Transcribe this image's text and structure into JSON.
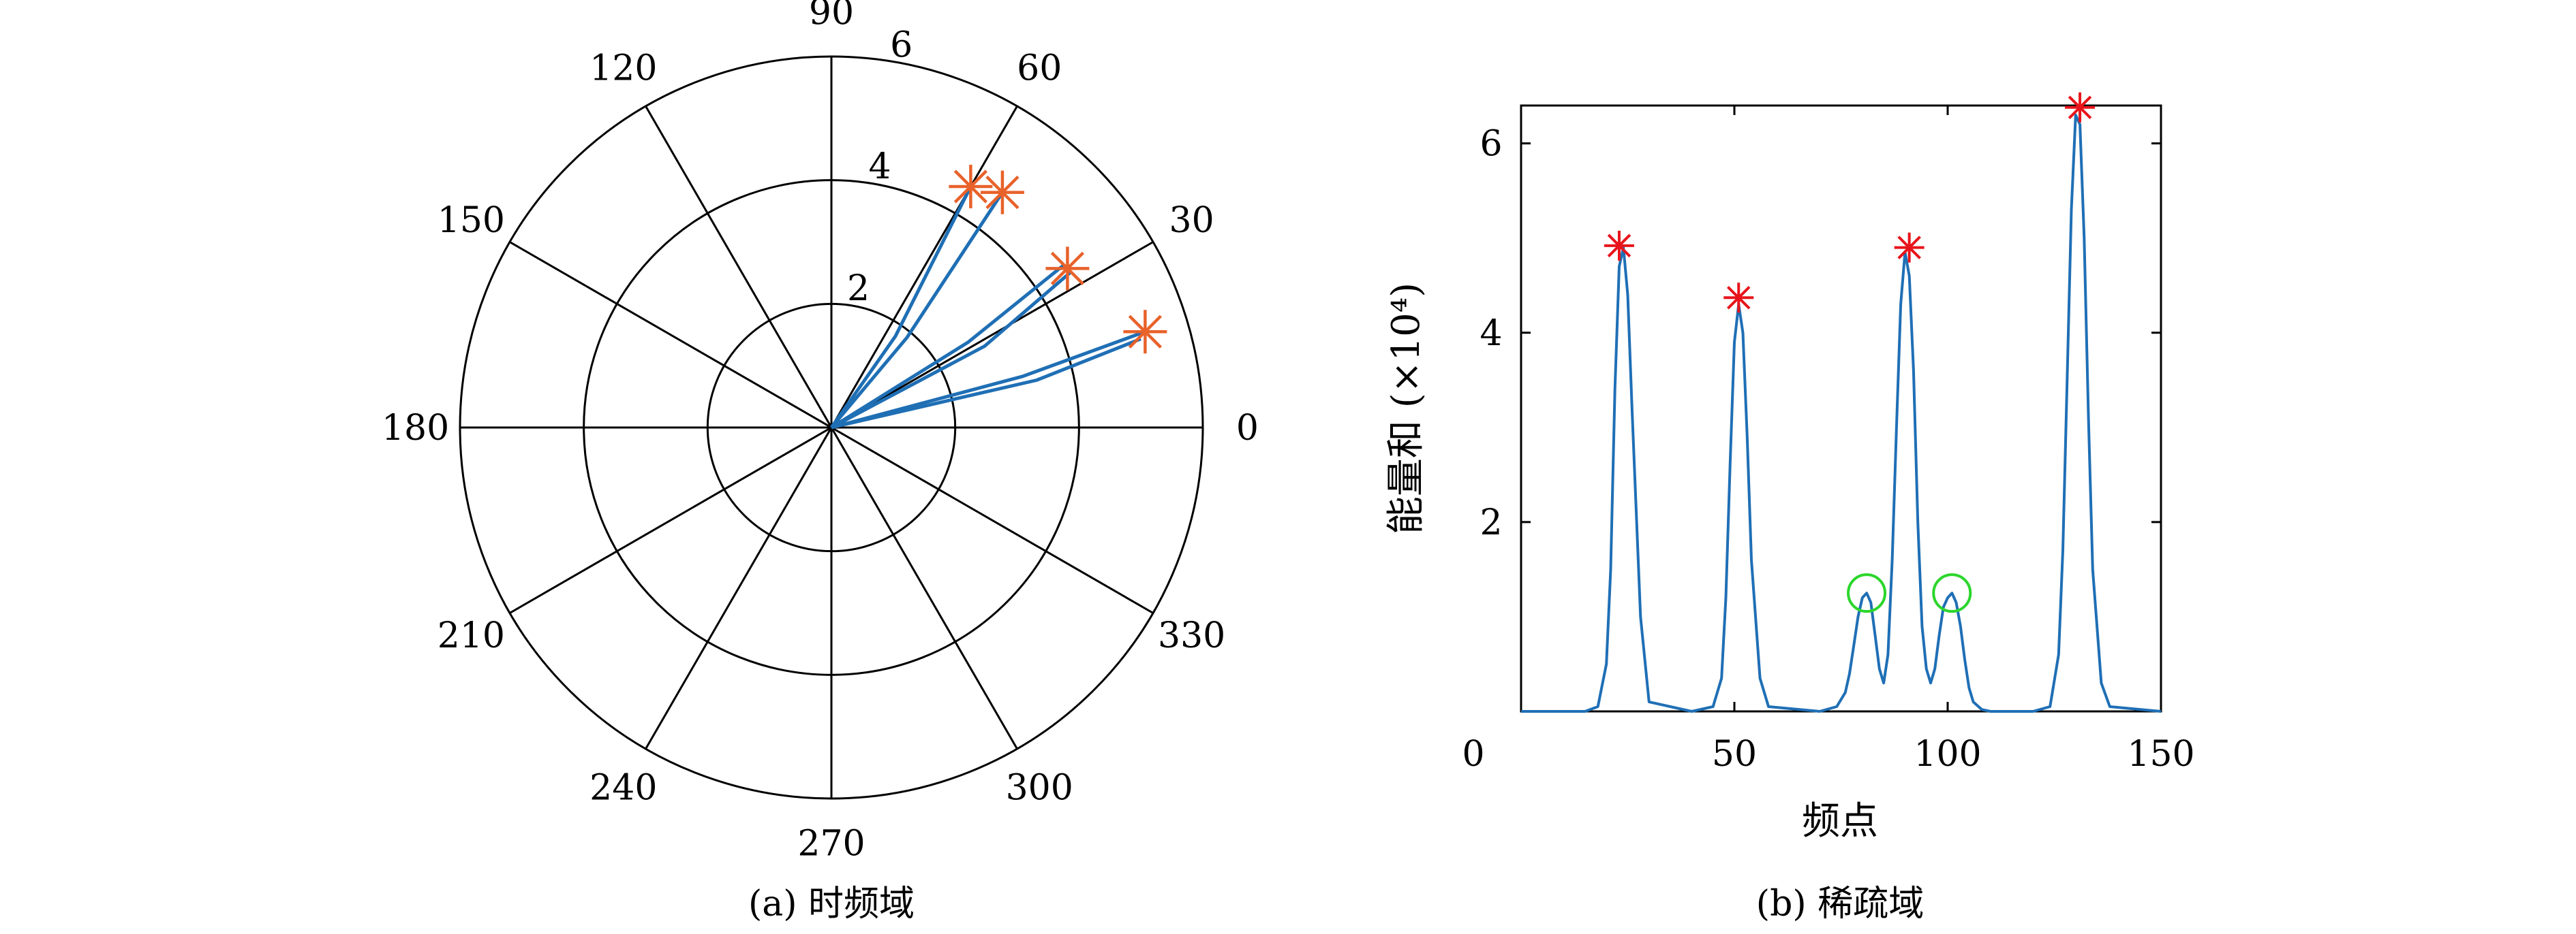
{
  "chart_data": [
    {
      "type": "polar",
      "caption": "(a) 时频域",
      "angle_ticks": [
        "0",
        "30",
        "60",
        "90",
        "120",
        "150",
        "180",
        "210",
        "240",
        "270",
        "300",
        "330"
      ],
      "angle_tick_values_deg": [
        0,
        30,
        60,
        90,
        120,
        150,
        180,
        210,
        240,
        270,
        300,
        330
      ],
      "radial_ticks": [
        "2",
        "4",
        "6"
      ],
      "radial_tick_values": [
        2,
        4,
        6
      ],
      "rlim": [
        0,
        6
      ],
      "grid": true,
      "rays": [
        {
          "points": [
            [
              0,
              0
            ],
            [
              1.8,
              55
            ],
            [
              4.5,
              60
            ]
          ]
        },
        {
          "points": [
            [
              0,
              0
            ],
            [
              1.9,
              50
            ],
            [
              4.7,
              54
            ]
          ]
        },
        {
          "points": [
            [
              0,
              0
            ],
            [
              2.6,
              32
            ],
            [
              4.6,
              35
            ]
          ]
        },
        {
          "points": [
            [
              0,
              0
            ],
            [
              2.8,
              28
            ],
            [
              4.6,
              33
            ]
          ]
        },
        {
          "points": [
            [
              0,
              0
            ],
            [
              3.2,
              15
            ],
            [
              5.3,
              17
            ]
          ]
        },
        {
          "points": [
            [
              0,
              0
            ],
            [
              3.4,
              13
            ],
            [
              5.2,
              16
            ]
          ]
        }
      ],
      "markers": [
        {
          "r": 4.5,
          "theta": 60
        },
        {
          "r": 4.7,
          "theta": 54
        },
        {
          "r": 4.6,
          "theta": 34
        },
        {
          "r": 5.3,
          "theta": 17
        }
      ],
      "line_color": "#1f6fb5",
      "marker_color": "#e8622a"
    },
    {
      "type": "line",
      "caption": "(b) 稀疏域",
      "xlabel": "频点",
      "ylabel": "能量和 (×10⁴)",
      "xlim": [
        0,
        150
      ],
      "ylim": [
        0,
        6.4
      ],
      "x_ticks": [
        "0",
        "50",
        "100",
        "150"
      ],
      "x_tick_values": [
        0,
        50,
        100,
        150
      ],
      "y_ticks": [
        "2",
        "4",
        "6"
      ],
      "y_tick_values": [
        2,
        4,
        6
      ],
      "series": [
        {
          "x": [
            0,
            15,
            18,
            20,
            21,
            22,
            23,
            24,
            25,
            26,
            28,
            30,
            40,
            45,
            47,
            48,
            49,
            50,
            51,
            52,
            53,
            54,
            56,
            58,
            70,
            74,
            76,
            77,
            78,
            79,
            80,
            81,
            82,
            83,
            84,
            85,
            86,
            87,
            88,
            89,
            90,
            91,
            92,
            93,
            94,
            95,
            96,
            97,
            98,
            99,
            100,
            101,
            102,
            103,
            104,
            105,
            106,
            108,
            110,
            120,
            124,
            126,
            127,
            128,
            129,
            130,
            131,
            132,
            133,
            134,
            136,
            138,
            150
          ],
          "y": [
            0,
            0,
            0.05,
            0.5,
            1.5,
            3.4,
            4.7,
            4.9,
            4.4,
            3.2,
            1.0,
            0.1,
            0,
            0.05,
            0.35,
            1.2,
            2.6,
            3.9,
            4.3,
            4.0,
            2.9,
            1.6,
            0.35,
            0.05,
            0,
            0.05,
            0.2,
            0.4,
            0.7,
            1.0,
            1.2,
            1.25,
            1.15,
            0.8,
            0.45,
            0.3,
            0.6,
            1.6,
            3.0,
            4.3,
            4.85,
            4.6,
            3.6,
            2.0,
            0.9,
            0.45,
            0.3,
            0.45,
            0.8,
            1.1,
            1.2,
            1.25,
            1.15,
            0.9,
            0.55,
            0.25,
            0.1,
            0.02,
            0,
            0,
            0.05,
            0.6,
            1.7,
            3.5,
            5.3,
            6.3,
            6.2,
            5.0,
            3.1,
            1.5,
            0.3,
            0.05,
            0
          ]
        }
      ],
      "red_markers": [
        [
          23,
          4.92
        ],
        [
          51,
          4.37
        ],
        [
          91,
          4.9
        ],
        [
          131,
          6.38
        ]
      ],
      "green_markers": [
        [
          81,
          1.25
        ],
        [
          101,
          1.25
        ]
      ],
      "line_color": "#1f6fb5",
      "red_color": "#e8141b",
      "green_color": "#2bd62b"
    }
  ]
}
